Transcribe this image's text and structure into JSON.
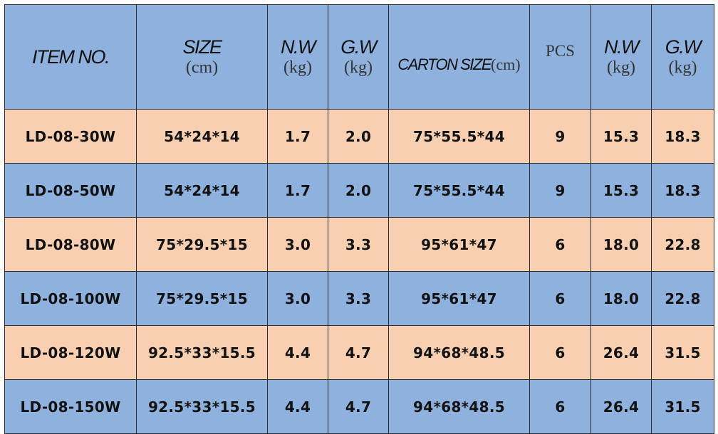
{
  "table": {
    "headers": {
      "item_no": "ITEM NO.",
      "size": "SIZE",
      "size_unit": "(cm)",
      "nw": "N.W",
      "nw_unit": "(kg)",
      "gw": "G.W",
      "gw_unit": "(kg)",
      "carton_size": "CARTON SIZE",
      "carton_unit": "(cm)",
      "pcs": "PCS",
      "carton_nw": "N.W",
      "carton_nw_unit": "(kg)",
      "carton_gw": "G.W",
      "carton_gw_unit": "(kg)"
    },
    "rows": [
      {
        "item": "LD-08-30W",
        "size": "54*24*14",
        "nw": "1.7",
        "gw": "2.0",
        "carton": "75*55.5*44",
        "pcs": "9",
        "cnw": "15.3",
        "cgw": "18.3"
      },
      {
        "item": "LD-08-50W",
        "size": "54*24*14",
        "nw": "1.7",
        "gw": "2.0",
        "carton": "75*55.5*44",
        "pcs": "9",
        "cnw": "15.3",
        "cgw": "18.3"
      },
      {
        "item": "LD-08-80W",
        "size": "75*29.5*15",
        "nw": "3.0",
        "gw": "3.3",
        "carton": "95*61*47",
        "pcs": "6",
        "cnw": "18.0",
        "cgw": "22.8"
      },
      {
        "item": "LD-08-100W",
        "size": "75*29.5*15",
        "nw": "3.0",
        "gw": "3.3",
        "carton": "95*61*47",
        "pcs": "6",
        "cnw": "18.0",
        "cgw": "22.8"
      },
      {
        "item": "LD-08-120W",
        "size": "92.5*33*15.5",
        "nw": "4.4",
        "gw": "4.7",
        "carton": "94*68*48.5",
        "pcs": "6",
        "cnw": "26.4",
        "cgw": "31.5"
      },
      {
        "item": "LD-08-150W",
        "size": "92.5*33*15.5",
        "nw": "4.4",
        "gw": "4.7",
        "carton": "94*68*48.5",
        "pcs": "6",
        "cnw": "26.4",
        "cgw": "31.5"
      }
    ]
  },
  "colors": {
    "header_bg": "#8fb1de",
    "row_peach": "#f9cfb1",
    "row_blue": "#8fb1de",
    "border": "#2a2a2a"
  }
}
